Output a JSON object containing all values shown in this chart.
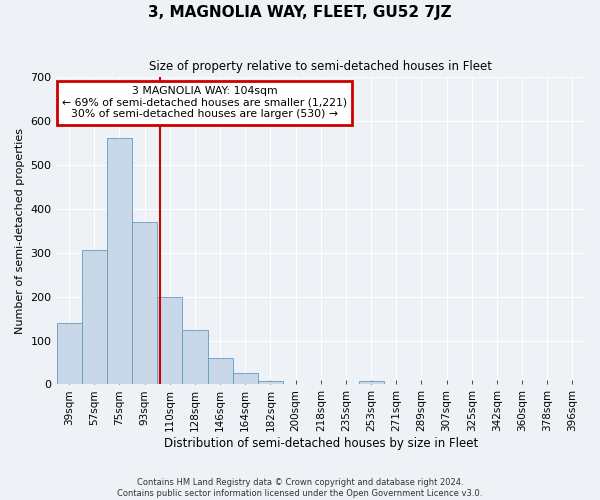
{
  "title": "3, MAGNOLIA WAY, FLEET, GU52 7JZ",
  "subtitle": "Size of property relative to semi-detached houses in Fleet",
  "xlabel": "Distribution of semi-detached houses by size in Fleet",
  "ylabel": "Number of semi-detached properties",
  "bin_labels": [
    "39sqm",
    "57sqm",
    "75sqm",
    "93sqm",
    "110sqm",
    "128sqm",
    "146sqm",
    "164sqm",
    "182sqm",
    "200sqm",
    "218sqm",
    "235sqm",
    "253sqm",
    "271sqm",
    "289sqm",
    "307sqm",
    "325sqm",
    "342sqm",
    "360sqm",
    "378sqm",
    "396sqm"
  ],
  "bar_values": [
    140,
    305,
    560,
    370,
    200,
    125,
    60,
    25,
    8,
    0,
    0,
    0,
    7,
    0,
    0,
    0,
    0,
    0,
    0,
    0,
    0
  ],
  "bar_color": "#c8d8e8",
  "bar_edge_color": "#6699bb",
  "annotation_line0": "3 MAGNOLIA WAY: 104sqm",
  "annotation_line1": "← 69% of semi-detached houses are smaller (1,221)",
  "annotation_line2": "30% of semi-detached houses are larger (530) →",
  "box_color": "#cc0000",
  "ylim": [
    0,
    700
  ],
  "yticks": [
    0,
    100,
    200,
    300,
    400,
    500,
    600,
    700
  ],
  "footer1": "Contains HM Land Registry data © Crown copyright and database right 2024.",
  "footer2": "Contains public sector information licensed under the Open Government Licence v3.0.",
  "bg_color": "#eef2f6",
  "grid_color": "#ffffff"
}
